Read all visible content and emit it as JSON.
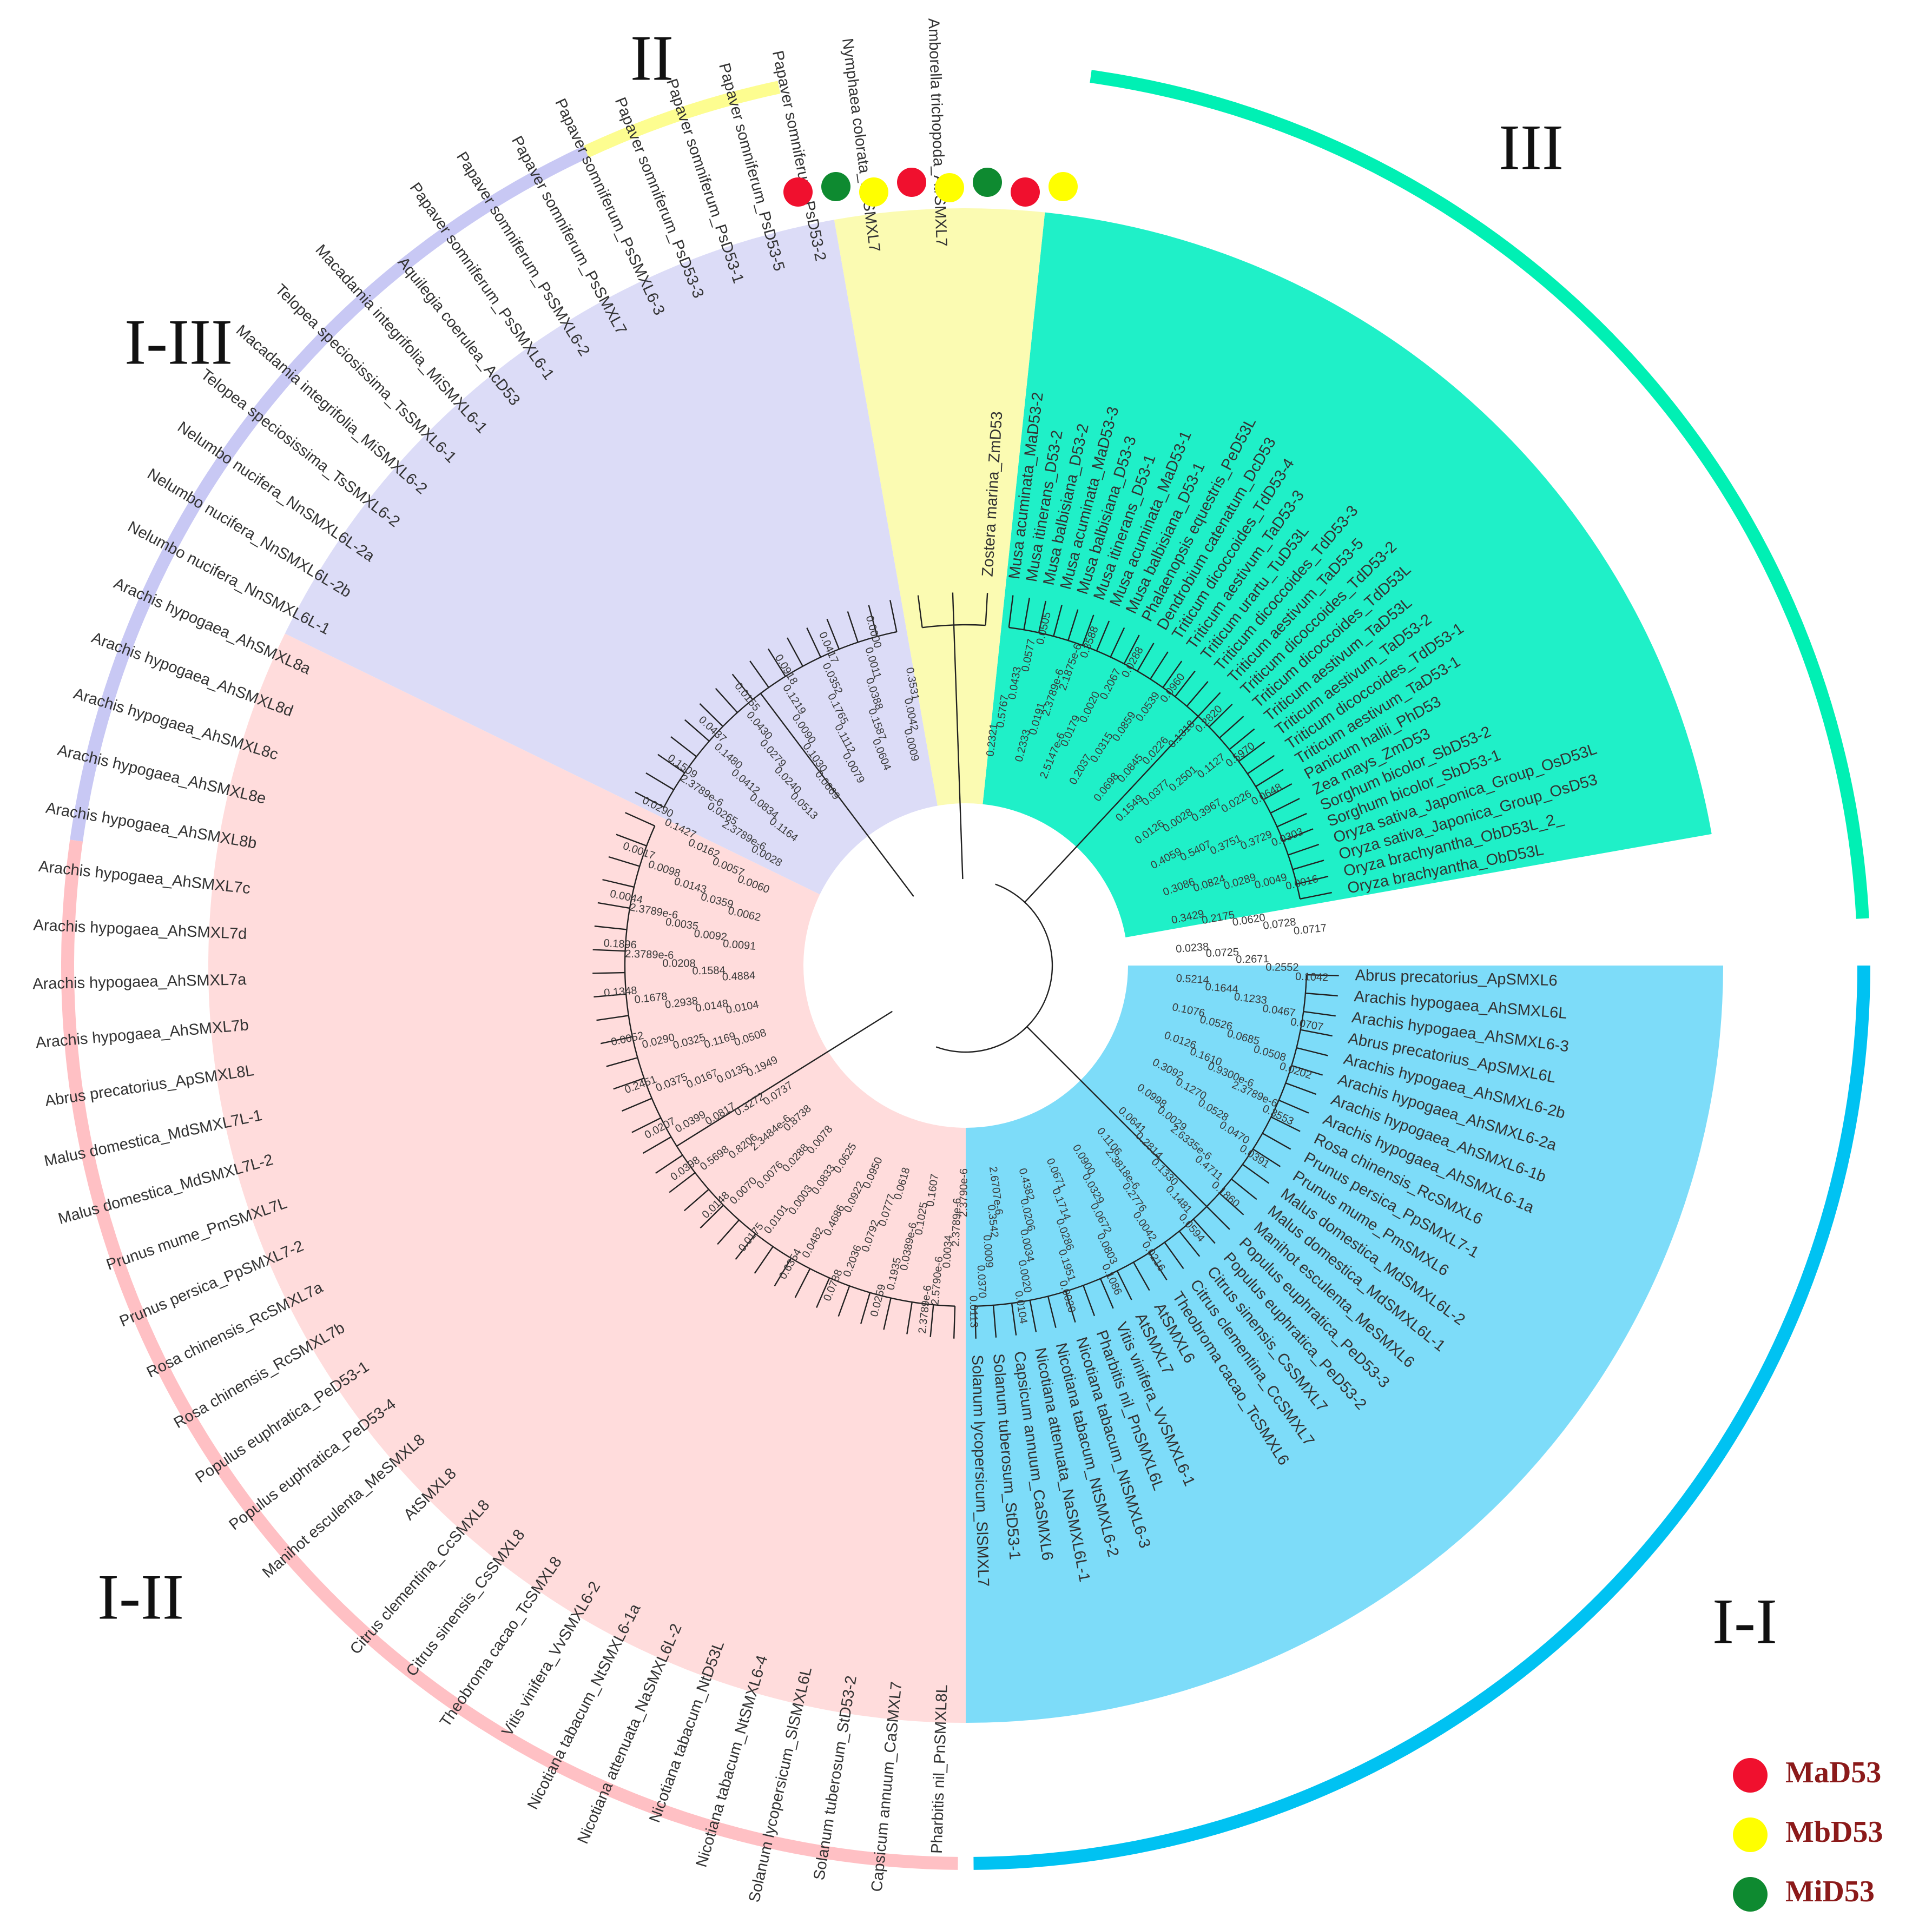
{
  "clades": [
    {
      "id": "I-I",
      "label": "I-I",
      "color": "#00c2f2",
      "sector_color": "#7ddcf9"
    },
    {
      "id": "I-II",
      "label": "I-II",
      "color": "#ffc0c4",
      "sector_color": "#ffdcdc"
    },
    {
      "id": "I-III",
      "label": "I-III",
      "color": "#c8c8f4",
      "sector_color": "#dcdcf7"
    },
    {
      "id": "II",
      "label": "II",
      "color": "#fdfd90",
      "sector_color": "#fbfbb2"
    },
    {
      "id": "III",
      "label": "III",
      "color": "#00f0b4",
      "sector_color": "#1ff0c8"
    }
  ],
  "leaves": {
    "III": [
      "Musa acuminata_MaD53-2",
      "Musa itinerans_D53-2",
      "Musa balbisiana_D53-2",
      "Musa acuminata_MaD53-3",
      "Musa balbisiana_D53-3",
      "Musa itinerans_D53-1",
      "Musa acuminata_MaD53-1",
      "Musa balbisiana_D53-1",
      "Phalaenopsis equestris_PeD53L",
      "Dendrobium catenatum_DcD53",
      "Triticum dicoccoides_TdD53-4",
      "Triticum aestivum_TaD53-3",
      "Triticum urartu_TuD53L",
      "Triticum dicoccoides_TdD53-3",
      "Triticum aestivum_TaD53-5",
      "Triticum dicoccoides_TdD53-2",
      "Triticum dicoccoides_TdD53L",
      "Triticum aestivum_TaD53L",
      "Triticum aestivum_TaD53-2",
      "Triticum dicoccoides_TdD53-1",
      "Triticum aestivum_TaD53-1",
      "Panicum hallii_PhD53",
      "Zea mays_ZmD53",
      "Sorghum bicolor_SbD53-2",
      "Sorghum bicolor_SbD53-1",
      "Oryza sativa_Japonica_Group_OsD53L",
      "Oryza sativa_Japonica_Group_OsD53",
      "Oryza brachyantha_ObD53L_2_",
      "Oryza brachyantha_ObD53L"
    ],
    "I-I": [
      "Abrus precatorius_ApSMXL6",
      "Arachis hypogaea_AhSMXL6L",
      "Arachis hypogaea_AhSMXL6-3",
      "Abrus precatorius_ApSMXL6L",
      "Arachis hypogaea_AhSMXL6-2b",
      "Arachis hypogaea_AhSMXL6-2a",
      "Arachis hypogaea_AhSMXL6-1b",
      "Arachis hypogaea_AhSMXL6-1a",
      "Rosa chinensis_RcSMXL6",
      "Prunus persica_PpSMXL7-1",
      "Prunus mume_PmSMXL6",
      "Malus domestica_MdSMXL6L-2",
      "Malus domestica_MdSMXL6L-1",
      "Manihot esculenta_MeSMXL6",
      "Populus euphratica_PeD53-3",
      "Populus euphratica_PeD53-2",
      "Citrus sinensis_CsSMXL7",
      "Citrus clementina_CcSMXL7",
      "Theobroma cacao_TcSMXL6",
      "AtSMXL6",
      "AtSMXL7",
      "Vitis vinifera_VvSMXL6-1",
      "Pharbitis nil_PnSMXL6L",
      "Nicotiana tabacum_NtSMXL6-3",
      "Nicotiana tabacum_NtSMXL6-2",
      "Nicotiana attenuata_NaSMXL6L-1",
      "Capsicum annuum_CaSMXL6",
      "Solanum tuberosum_StD53-1",
      "Solanum lycopersicum_SlSMXL7"
    ],
    "I-II": [
      "Pharbitis nil_PnSMXL8L",
      "Capsicum annuum_CaSMXL7",
      "Solanum tuberosum_StD53-2",
      "Solanum lycopersicum_SlSMXL6L",
      "Nicotiana tabacum_NtSMXL6-4",
      "Nicotiana tabacum_NtD53L",
      "Nicotiana attenuata_NaSMXL6L-2",
      "Nicotiana tabacum_NtSMXL6-1a",
      "Vitis vinifera_VvSMXL6-2",
      "Theobroma cacao_TcSMXL8",
      "Citrus sinensis_CsSMXL8",
      "Citrus clementina_CcSMXL8",
      "AtSMXL8",
      "Manihot esculenta_MeSMXL8",
      "Populus euphratica_PeD53-4",
      "Populus euphratica_PeD53-1",
      "Rosa chinensis_RcSMXL7b",
      "Rosa chinensis_RcSMXL7a",
      "Prunus persica_PpSMXL7-2",
      "Prunus mume_PmSMXL7L",
      "Malus domestica_MdSMXL7L-2",
      "Malus domestica_MdSMXL7L-1",
      "Abrus precatorius_ApSMXL8L",
      "Arachis hypogaea_AhSMXL7b",
      "Arachis hypogaea_AhSMXL7a",
      "Arachis hypogaea_AhSMXL7d",
      "Arachis hypogaea_AhSMXL7c",
      "Arachis hypogaea_AhSMXL8b",
      "Arachis hypogaea_AhSMXL8e",
      "Arachis hypogaea_AhSMXL8c",
      "Arachis hypogaea_AhSMXL8d",
      "Arachis hypogaea_AhSMXL8a"
    ],
    "I-III": [
      "Nelumbo nucifera_NnSMXL6L-1",
      "Nelumbo nucifera_NnSMXL6L-2b",
      "Nelumbo nucifera_NnSMXL6L-2a",
      "Telopea speciosissima_TsSMXL6-2",
      "Macadamia integrifolia_MiSMXL6-2",
      "Telopea speciosissima_TsSMXL6-1",
      "Macadamia integrifolia_MiSMXL6-1",
      "Aquilegia coerulea_AcD53",
      "Papaver somniferum_PsSMXL6-1",
      "Papaver somniferum_PsSMXL6-2",
      "Papaver somniferum_PsSMXL7",
      "Papaver somniferum_PsSMXL6-3",
      "Papaver somniferum_PsD53-3",
      "Papaver somniferum_PsD53-1",
      "Papaver somniferum_PsD53-5",
      "Papaver somniferum_PsD53-2"
    ],
    "II": [
      "Nymphaea colorata_NcSMXL7",
      "Amborella trichopoda_AtrSMXL7",
      "Zostera marina_ZmD53"
    ]
  },
  "branch_lengths": [
    "0.2321",
    "0.5767",
    "0.0433",
    "0.0577",
    "0.0505",
    "0.2333",
    "0.0191",
    "2.3789e-6",
    "2.1875e-6",
    "0.3588",
    "2.5147e-6",
    "0.0179",
    "0.0020",
    "0.2067",
    "0.0288",
    "0.2037",
    "0.0315",
    "0.0859",
    "0.0539",
    "0.0960",
    "0.0698",
    "0.0845",
    "0.0226",
    "0.1318",
    "0.2820",
    "0.1549",
    "0.0377",
    "0.2501",
    "0.1127",
    "0.5970",
    "0.0126",
    "0.0028",
    "0.3967",
    "0.0226",
    "0.0648",
    "0.4059",
    "0.5407",
    "0.3751",
    "0.3729",
    "0.0303",
    "0.3086",
    "0.0824",
    "0.0289",
    "0.0049",
    "0.0016",
    "0.3429",
    "0.2175",
    "0.0620",
    "0.0728",
    "0.0717",
    "0.0238",
    "0.0725",
    "0.2671",
    "0.2552",
    "0.1042",
    "0.5214",
    "0.1644",
    "0.1233",
    "0.0467",
    "0.0707",
    "0.1076",
    "0.0526",
    "0.0685",
    "0.0508",
    "0.0202",
    "0.0126",
    "0.1610",
    "0.9300e-6",
    "2.3789e-6",
    "0.3553",
    "0.3092",
    "0.1270",
    "0.0528",
    "0.0470",
    "0.0391",
    "0.0998",
    "0.0029",
    "2.6335e-6",
    "0.4711",
    "0.1860",
    "0.0641",
    "0.2814",
    "0.1330",
    "0.1481",
    "0.0594",
    "0.1106",
    "2.3818e-6",
    "0.2776",
    "0.0042",
    "0.0216",
    "0.0900",
    "0.0329",
    "0.0672",
    "0.0803",
    "0.1086",
    "0.0671",
    "0.1714",
    "0.0286",
    "0.1951",
    "0.0020",
    "0.4382",
    "0.0206",
    "0.0034",
    "0.0020",
    "0.0104",
    "2.6707e-6",
    "0.3542",
    "0.0009",
    "0.0370",
    "0.0113",
    "2.3790e-6",
    "2.3789e-6",
    "0.0034",
    "2.5790e-6",
    "2.3789e-6",
    "0.1607",
    "0.1025",
    "0.0389e-6",
    "0.1935",
    "0.0259",
    "0.0618",
    "0.0777",
    "0.0792",
    "0.2036",
    "0.0788",
    "0.0950",
    "0.0922",
    "0.4686",
    "0.0482",
    "0.6354",
    "0.0625",
    "0.0833",
    "0.0003",
    "0.0101",
    "0.0175",
    "0.0078",
    "0.0288",
    "0.0076",
    "0.0070",
    "0.0148",
    "0.8738",
    "2.3484e-6",
    "0.8206",
    "0.5698",
    "0.0398",
    "0.0737",
    "0.3272",
    "0.0817",
    "0.0399",
    "0.0207",
    "0.1949",
    "0.0135",
    "0.0167",
    "0.0375",
    "0.2451",
    "0.0508",
    "0.1169",
    "0.0325",
    "0.0290",
    "0.0052",
    "0.0104",
    "0.0148",
    "0.2938",
    "0.1678",
    "0.1348",
    "0.4884",
    "0.1584",
    "0.0208",
    "2.3789e-6",
    "0.1896",
    "0.0091",
    "0.0092",
    "0.0035",
    "2.3789e-6",
    "0.0044",
    "0.0062",
    "0.0359",
    "0.0143",
    "0.0098",
    "0.0017",
    "0.0060",
    "0.0057",
    "0.0162",
    "0.1427",
    "0.0290",
    "0.0028",
    "2.3789e-6",
    "0.0265",
    "2.3789e-6",
    "0.1509",
    "0.1164",
    "0.0834",
    "0.0412",
    "0.1480",
    "0.0437",
    "0.0513",
    "0.0240",
    "0.0279",
    "0.0430",
    "0.0155",
    "0.0669",
    "0.1030",
    "0.0090",
    "0.1219",
    "0.0918",
    "0.0079",
    "0.1112",
    "0.1765",
    "0.0352",
    "0.0417",
    "0.0604",
    "0.1587",
    "0.0388",
    "0.0011",
    "0.0000",
    "0.0009",
    "0.0042",
    "0.3531"
  ],
  "markers": [
    {
      "label": "MaD53",
      "color": "#f0102e"
    },
    {
      "label": "MiD53",
      "color": "#0e8a30"
    },
    {
      "label": "MbD53",
      "color": "#ffff00"
    },
    {
      "label": "MaD53",
      "color": "#f0102e"
    },
    {
      "label": "MbD53",
      "color": "#ffff00"
    },
    {
      "label": "MiD53",
      "color": "#0e8a30"
    },
    {
      "label": "MaD53",
      "color": "#f0102e"
    },
    {
      "label": "MbD53",
      "color": "#ffff00"
    }
  ],
  "legend": [
    {
      "label": "MaD53",
      "color": "#f0102e"
    },
    {
      "label": "MbD53",
      "color": "#ffff00"
    },
    {
      "label": "MiD53",
      "color": "#0e8a30"
    }
  ]
}
